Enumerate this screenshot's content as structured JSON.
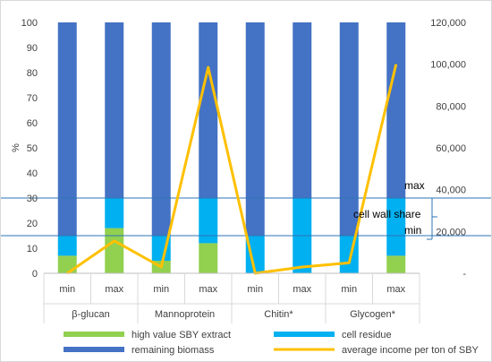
{
  "chart_data": {
    "type": "bar",
    "stacked": true,
    "categories": [
      "min",
      "max",
      "min",
      "max",
      "min",
      "max",
      "min",
      "max"
    ],
    "groups": [
      "β-glucan",
      "Mannoprotein",
      "Chitin*",
      "Glycogen*"
    ],
    "series": [
      {
        "name": "high value SBY extract",
        "type": "bar",
        "axis": "left",
        "color": "#92d050",
        "values": [
          7,
          18,
          5,
          12,
          0,
          0,
          0,
          7
        ]
      },
      {
        "name": "cell residue",
        "type": "bar",
        "axis": "left",
        "color": "#00b0f0",
        "values": [
          8,
          12,
          10,
          18,
          15,
          30,
          15,
          23
        ]
      },
      {
        "name": "remaining biomass",
        "type": "bar",
        "axis": "left",
        "color": "#4472c4",
        "values": [
          85,
          70,
          85,
          70,
          85,
          70,
          85,
          70
        ]
      },
      {
        "name": "average income per ton of SBY",
        "type": "line",
        "axis": "right",
        "color": "#ffc000",
        "values": [
          0,
          15500,
          3000,
          98500,
          0,
          3000,
          5000,
          100000
        ]
      }
    ],
    "ylabel": "%",
    "ylim": [
      0,
      100
    ],
    "yticks": [
      "0",
      "10",
      "20",
      "30",
      "40",
      "50",
      "60",
      "70",
      "80",
      "90",
      "100"
    ],
    "y2lim": [
      0,
      120000
    ],
    "y2ticks": [
      "-",
      "20,000",
      "40,000",
      "60,000",
      "80,000",
      "100,000",
      "120,000"
    ],
    "reference_lines": [
      {
        "value": 30,
        "color": "#2e75b6"
      },
      {
        "value": 15,
        "color": "#2e75b6"
      }
    ],
    "annotations": {
      "max": "max",
      "share": "cell wall share",
      "min": "min"
    },
    "legend_position": "bottom",
    "grid": false
  }
}
